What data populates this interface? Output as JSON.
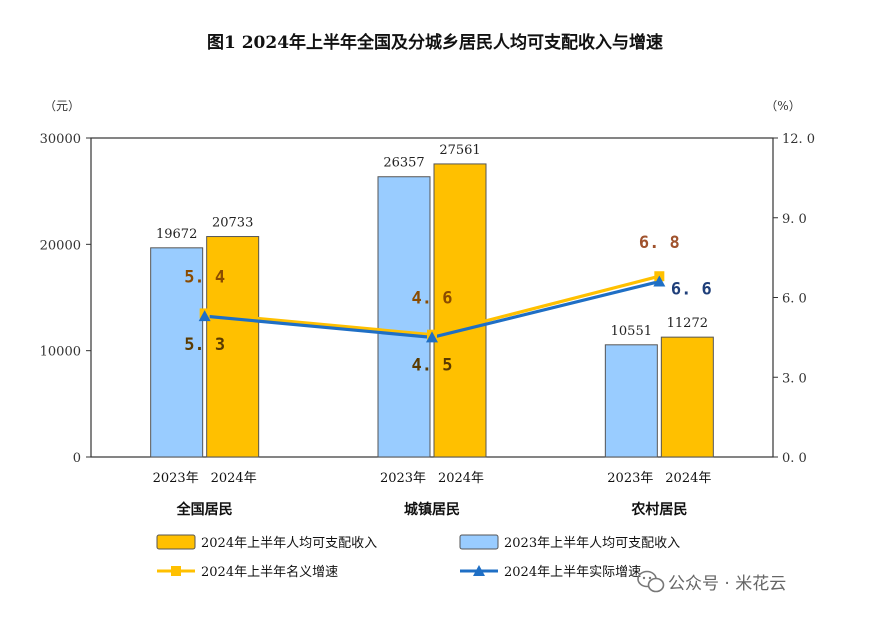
{
  "title": "图1   2024年上半年全国及分城乡居民人均可支配收入与增速",
  "watermark": "公众号 · 米花云",
  "colors": {
    "bar_2023": "#99ccff",
    "bar_2024": "#ffc000",
    "line_nominal": "#ffc000",
    "line_real": "#1f6fc5",
    "axis": "#333333",
    "label_nominal": "#a0522d",
    "label_real": "#1f3f7a"
  },
  "chart_data": {
    "type": "bar",
    "categories": [
      "全国居民",
      "城镇居民",
      "农村居民"
    ],
    "year_labels": [
      "2023年",
      "2024年"
    ],
    "yaxis_left": {
      "unit": "（元）",
      "ylim": [
        0,
        30000
      ],
      "ticks": [
        0,
        10000,
        20000,
        30000
      ],
      "tick_labels": [
        "0",
        "10000",
        "20000",
        "30000"
      ]
    },
    "yaxis_right": {
      "unit": "（%）",
      "ylim": [
        0,
        12
      ],
      "ticks": [
        0,
        3,
        6,
        9,
        12
      ],
      "tick_labels": [
        "0. 0",
        "3. 0",
        "6. 0",
        "9. 0",
        "12. 0"
      ]
    },
    "series": [
      {
        "name": "2023年上半年人均可支配收入",
        "kind": "bar",
        "axis": "left",
        "values": [
          19672,
          26357,
          10551
        ],
        "labels": [
          "19672",
          "26357",
          "10551"
        ]
      },
      {
        "name": "2024年上半年人均可支配收入",
        "kind": "bar",
        "axis": "left",
        "values": [
          20733,
          27561,
          11272
        ],
        "labels": [
          "20733",
          "27561",
          "11272"
        ]
      },
      {
        "name": "2024年上半年名义增速",
        "kind": "line",
        "axis": "right",
        "marker": "square",
        "values": [
          5.4,
          4.6,
          6.8
        ],
        "labels": [
          "5. 4",
          "4. 6",
          "6. 8"
        ]
      },
      {
        "name": "2024年上半年实际增速",
        "kind": "line",
        "axis": "right",
        "marker": "triangle",
        "values": [
          5.3,
          4.5,
          6.6
        ],
        "labels": [
          "5. 3",
          "4. 5",
          "6. 6"
        ]
      }
    ],
    "legend_labels": [
      "2024年上半年人均可支配收入",
      "2023年上半年人均可支配收入",
      "2024年上半年名义增速",
      "2024年上半年实际增速"
    ],
    "grid": false,
    "legend_position": "bottom"
  }
}
